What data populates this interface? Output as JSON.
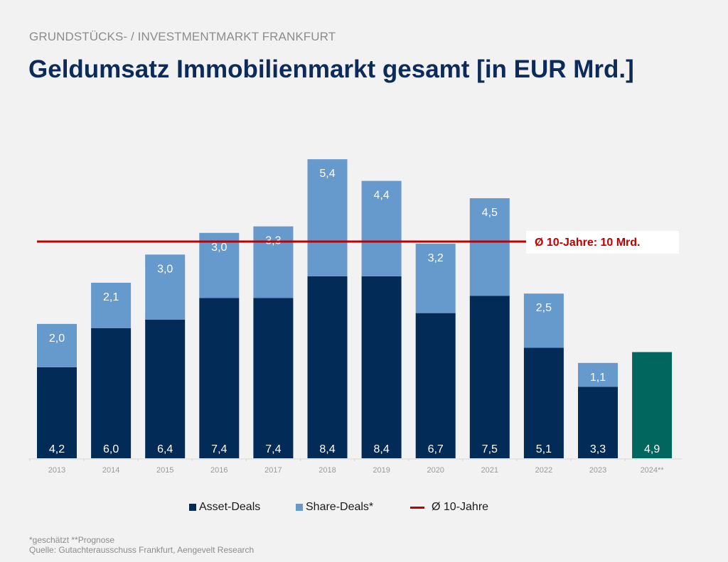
{
  "header": {
    "supertitle": "GRUNDSTÜCKS- / INVESTMENTMARKT FRANKFURT",
    "title": "Geldumsatz Immobilienmarkt gesamt [in EUR Mrd.]"
  },
  "colors": {
    "asset": "#032b57",
    "share": "#6699cc",
    "forecast": "#00665e",
    "average": "#c00000",
    "axis_label": "#9a9a9a"
  },
  "chart_data": {
    "type": "bar",
    "stacked": true,
    "title": "Geldumsatz Immobilienmarkt gesamt [in EUR Mrd.]",
    "xlabel": "",
    "ylabel": "",
    "ylim": [
      0,
      14
    ],
    "grid": false,
    "categories": [
      "2013",
      "2014",
      "2015",
      "2016",
      "2017",
      "2018",
      "2019",
      "2020",
      "2021",
      "2022",
      "2023",
      "2024**"
    ],
    "series": [
      {
        "name": "Asset-Deals",
        "values": [
          4.2,
          6.0,
          6.4,
          7.4,
          7.4,
          8.4,
          8.4,
          6.7,
          7.5,
          5.1,
          3.3,
          4.9
        ],
        "labels": [
          "4,2",
          "6,0",
          "6,4",
          "7,4",
          "7,4",
          "8,4",
          "8,4",
          "6,7",
          "7,5",
          "5,1",
          "3,3",
          "4,9"
        ]
      },
      {
        "name": "Share-Deals*",
        "values": [
          2.0,
          2.1,
          3.0,
          3.0,
          3.3,
          5.4,
          4.4,
          3.2,
          4.5,
          2.5,
          1.1,
          null
        ],
        "labels": [
          "2,0",
          "2,1",
          "3,0",
          "3,0",
          "3,3",
          "5,4",
          "4,4",
          "3,2",
          "4,5",
          "2,5",
          "1,1",
          null
        ]
      }
    ],
    "forecast_category_index": 11,
    "average_line": {
      "name": "Ø 10-Jahre",
      "value": 10,
      "annotation": "Ø 10-Jahre: 10 Mrd."
    },
    "legend": [
      "Asset-Deals",
      "Share-Deals*",
      "Ø 10-Jahre"
    ],
    "legend_position": "bottom"
  },
  "footnotes": {
    "line1": "*geschätzt **Prognose",
    "line2": "Quelle: Gutachterausschuss Frankfurt, Aengevelt Research"
  }
}
